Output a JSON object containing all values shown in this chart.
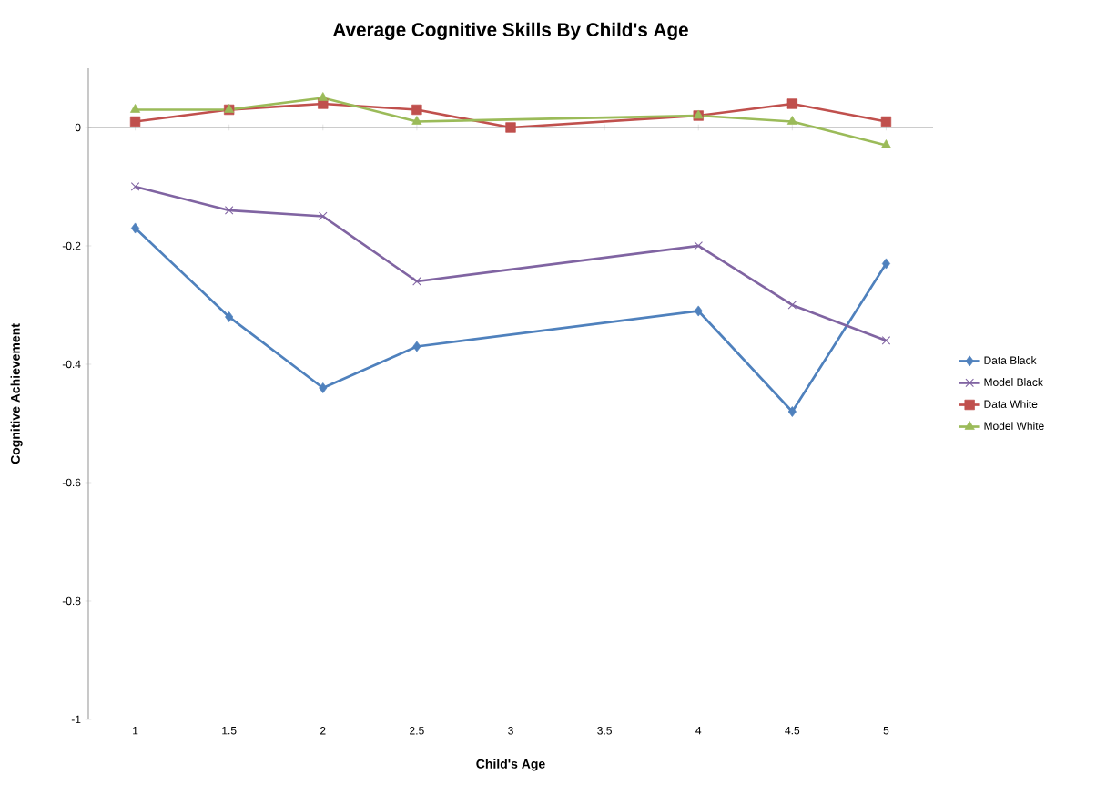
{
  "chart_data": {
    "type": "line",
    "title": "Average Cognitive Skills By Child's Age",
    "xlabel": "Child's Age",
    "ylabel": "Cognitive Achievement",
    "xlim": [
      0.75,
      5.25
    ],
    "xticks": [
      1,
      1.5,
      2,
      2.5,
      3,
      3.5,
      4,
      4.5,
      5
    ],
    "ylim": [
      -1,
      0.1
    ],
    "yticks": [
      -1,
      -0.8,
      -0.6,
      -0.4,
      -0.2,
      0
    ],
    "legend": "right",
    "series": [
      {
        "name": "Data Black",
        "color": "#4f81bd",
        "marker": "diamond",
        "x": [
          1,
          1.5,
          2,
          2.5,
          4,
          4.5,
          5
        ],
        "values": [
          -0.17,
          -0.32,
          -0.44,
          -0.37,
          -0.31,
          -0.48,
          -0.23
        ]
      },
      {
        "name": "Model Black",
        "color": "#8064a2",
        "marker": "cross",
        "x": [
          1,
          1.5,
          2,
          2.5,
          4,
          4.5,
          5
        ],
        "values": [
          -0.1,
          -0.14,
          -0.15,
          -0.26,
          -0.2,
          -0.3,
          -0.36
        ]
      },
      {
        "name": "Data White",
        "color": "#c0504d",
        "marker": "square",
        "x": [
          1,
          1.5,
          2,
          2.5,
          3,
          4,
          4.5,
          5
        ],
        "values": [
          0.01,
          0.03,
          0.04,
          0.03,
          0,
          0.02,
          0.04,
          0.01
        ]
      },
      {
        "name": "Model White",
        "color": "#9bbb59",
        "marker": "triangle",
        "x": [
          1,
          1.5,
          2,
          2.5,
          4,
          4.5,
          5
        ],
        "values": [
          0.03,
          0.03,
          0.05,
          0.01,
          0.02,
          0.01,
          -0.03
        ]
      }
    ]
  }
}
